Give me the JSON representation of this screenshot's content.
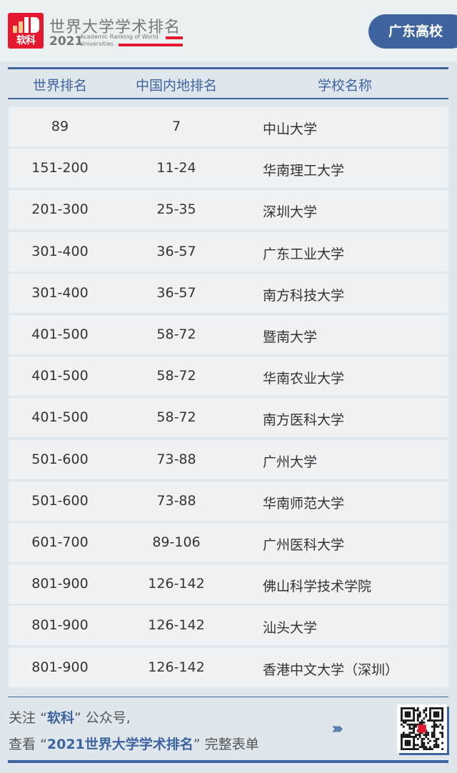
{
  "header": {
    "logo_text": "软科",
    "title": "世界大学学术排名",
    "year": "2021",
    "subtitle_line1": "Academic Ranking of World",
    "subtitle_line2": "Universities",
    "region_badge": "广东高校"
  },
  "colors": {
    "accent": "#3e64a0",
    "brand_red": "#e4182e"
  },
  "table": {
    "columns": [
      "世界排名",
      "中国内地排名",
      "学校名称"
    ],
    "rows": [
      [
        "89",
        "7",
        "中山大学"
      ],
      [
        "151-200",
        "11-24",
        "华南理工大学"
      ],
      [
        "201-300",
        "25-35",
        "深圳大学"
      ],
      [
        "301-400",
        "36-57",
        "广东工业大学"
      ],
      [
        "301-400",
        "36-57",
        "南方科技大学"
      ],
      [
        "401-500",
        "58-72",
        "暨南大学"
      ],
      [
        "401-500",
        "58-72",
        "华南农业大学"
      ],
      [
        "401-500",
        "58-72",
        "南方医科大学"
      ],
      [
        "501-600",
        "73-88",
        "广州大学"
      ],
      [
        "501-600",
        "73-88",
        "华南师范大学"
      ],
      [
        "601-700",
        "89-106",
        "广州医科大学"
      ],
      [
        "801-900",
        "126-142",
        "佛山科学技术学院"
      ],
      [
        "801-900",
        "126-142",
        "汕头大学"
      ],
      [
        "801-900",
        "126-142",
        "香港中文大学（深圳）"
      ]
    ]
  },
  "footer": {
    "line1_pre": "关注 “",
    "line1_bold": "软科",
    "line1_post": "” 公众号,",
    "line2_pre": "查看 “",
    "line2_bold": "2021世界大学学术排名",
    "line2_post": "” 完整表单",
    "arrows": "››››",
    "qr_icon": "qr-code"
  }
}
